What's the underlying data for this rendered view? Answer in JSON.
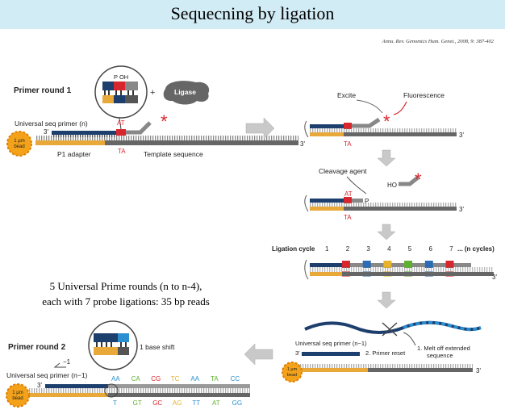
{
  "title": "Sequecning by ligation",
  "citation": "Annu. Rev. Genomics Hum. Genet., 2008, 9: 387-402",
  "summary": {
    "line1": "5 Universal Prime rounds (n to n-4),",
    "line2": "each with 7 probe ligations: 35 bp reads"
  },
  "primer_round_1": {
    "label": "Primer round 1",
    "probe_label": "P OH",
    "plus": "+",
    "ligase": "Ligase",
    "primer_label": "Universal seq primer (n)",
    "three_prime": "3'",
    "bead_line1": "1 μm",
    "bead_line2": "bead",
    "probe_top": "AT",
    "probe_bottom": "TA",
    "p1_adapter": "P1 adapter",
    "template": "Template sequence"
  },
  "step_detect": {
    "excite": "Excite",
    "fluorescence": "Fluorescence",
    "base": "TA",
    "three_prime": "3'"
  },
  "step_cleave": {
    "cleavage": "Cleavage agent",
    "ho": "HO",
    "top": "AT",
    "p": "P",
    "bottom": "TA",
    "three_prime": "3'"
  },
  "ligation_cycle": {
    "label": "Ligation cycle",
    "cycles": [
      "1",
      "2",
      "3",
      "4",
      "5",
      "6",
      "7"
    ],
    "n_cycles": "... (n cycles)",
    "three_prime": "3'",
    "probe_colors": [
      "#d7262e",
      "#2a6db5",
      "#e8b22c",
      "#5fb030",
      "#2a6db5",
      "#d7262e"
    ]
  },
  "primer_reset": {
    "primer_label": "Universal seq primer (n−1)",
    "three_prime": "3'",
    "reset": "2. Primer reset",
    "melt_line1": "1. Melt off extended",
    "melt_line2": "sequence",
    "bead_line1": "1 μm",
    "bead_line2": "bead",
    "template_end": "3'"
  },
  "primer_round_2": {
    "label": "Primer round 2",
    "shift": "1 base shift",
    "minus_one": "−1",
    "primer_label": "Universal seq primer (n−1)",
    "three_prime": "3'",
    "top_pairs": [
      "AA",
      "CA",
      "CG",
      "TC",
      "AA",
      "TA",
      "CC"
    ],
    "bottom_pairs": [
      "T",
      "GT",
      "GC",
      "AG",
      "TT",
      "AT",
      "GG"
    ],
    "bead_line1": "1 μm",
    "bead_line2": "bead"
  },
  "colors": {
    "navy": "#1d3f6e",
    "orange": "#e8a93a",
    "gray": "#777777",
    "red": "#d7262e",
    "title_bg": "#d2ecf5",
    "arrow": "#c9c9c9"
  }
}
